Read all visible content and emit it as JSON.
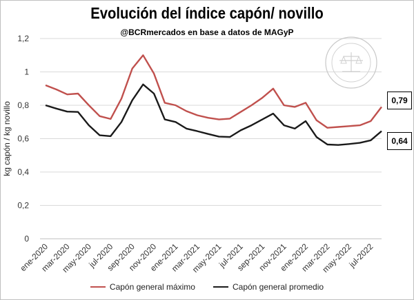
{
  "title": "Evolución del índice capón/ novillo",
  "subtitle": "@BCRmercados en base a datos de MAGyP",
  "colors": {
    "max": "#c0504d",
    "avg": "#1a1a1a",
    "grid": "#d9d9d9"
  },
  "chart_data": {
    "type": "line",
    "title": "Evolución del índice capón/ novillo",
    "subtitle": "@BCRmercados en base a datos de MAGyP",
    "xlabel": "",
    "ylabel": "kg capón / kg novillo",
    "ylim": [
      0,
      1.2
    ],
    "y_ticks": [
      "0",
      "0,2",
      "0,4",
      "0,6",
      "0,8",
      "1",
      "1,2"
    ],
    "grid": true,
    "legend": "bottom",
    "x": [
      "ene-2020",
      "feb-2020",
      "mar-2020",
      "abr-2020",
      "may-2020",
      "jun-2020",
      "jul-2020",
      "ago-2020",
      "sep-2020",
      "oct-2020",
      "nov-2020",
      "dic-2020",
      "ene-2021",
      "feb-2021",
      "mar-2021",
      "abr-2021",
      "may-2021",
      "jun-2021",
      "jul-2021",
      "ago-2021",
      "sep-2021",
      "oct-2021",
      "nov-2021",
      "dic-2021",
      "ene-2022",
      "feb-2022",
      "mar-2022",
      "abr-2022",
      "may-2022",
      "jun-2022",
      "jul-2022",
      "ago-2022"
    ],
    "x_tick_labels": [
      "ene-2020",
      "mar-2020",
      "may-2020",
      "jul-2020",
      "sep-2020",
      "nov-2020",
      "ene-2021",
      "mar-2021",
      "may-2021",
      "jul-2021",
      "sep-2021",
      "nov-2021",
      "ene-2022",
      "mar-2022",
      "may-2022",
      "jul-2022"
    ],
    "series": [
      {
        "name": "Capón general máximo",
        "values": [
          0.92,
          0.895,
          0.865,
          0.87,
          0.8,
          0.735,
          0.718,
          0.84,
          1.02,
          1.1,
          0.99,
          0.815,
          0.8,
          0.765,
          0.74,
          0.725,
          0.715,
          0.72,
          0.76,
          0.8,
          0.845,
          0.9,
          0.8,
          0.79,
          0.815,
          0.71,
          0.665,
          0.67,
          0.675,
          0.68,
          0.705,
          0.79
        ]
      },
      {
        "name": "Capón general promedio",
        "values": [
          0.8,
          0.78,
          0.762,
          0.76,
          0.68,
          0.62,
          0.615,
          0.7,
          0.83,
          0.925,
          0.87,
          0.715,
          0.7,
          0.66,
          0.645,
          0.628,
          0.612,
          0.61,
          0.65,
          0.68,
          0.715,
          0.75,
          0.68,
          0.66,
          0.705,
          0.61,
          0.565,
          0.562,
          0.568,
          0.575,
          0.59,
          0.645
        ]
      }
    ],
    "end_labels": [
      "0,79",
      "0,64"
    ]
  }
}
